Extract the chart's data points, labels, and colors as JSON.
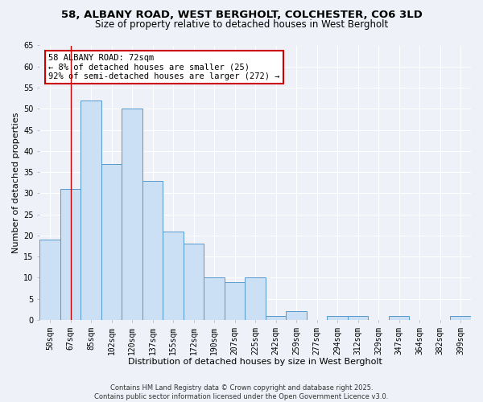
{
  "title_line1": "58, ALBANY ROAD, WEST BERGHOLT, COLCHESTER, CO6 3LD",
  "title_line2": "Size of property relative to detached houses in West Bergholt",
  "xlabel": "Distribution of detached houses by size in West Bergholt",
  "ylabel": "Number of detached properties",
  "categories": [
    "50sqm",
    "67sqm",
    "85sqm",
    "102sqm",
    "120sqm",
    "137sqm",
    "155sqm",
    "172sqm",
    "190sqm",
    "207sqm",
    "225sqm",
    "242sqm",
    "259sqm",
    "277sqm",
    "294sqm",
    "312sqm",
    "329sqm",
    "347sqm",
    "364sqm",
    "382sqm",
    "399sqm"
  ],
  "values": [
    19,
    31,
    52,
    37,
    50,
    33,
    21,
    18,
    10,
    9,
    10,
    1,
    2,
    0,
    1,
    1,
    0,
    1,
    0,
    0,
    1
  ],
  "bar_color": "#cce0f5",
  "bar_edge_color": "#5599cc",
  "annotation_text": "58 ALBANY ROAD: 72sqm\n← 8% of detached houses are smaller (25)\n92% of semi-detached houses are larger (272) →",
  "annotation_box_color": "#ffffff",
  "annotation_box_edge": "#cc0000",
  "vline_x": 1.0,
  "vline_color": "#cc0000",
  "ylim": [
    0,
    65
  ],
  "yticks": [
    0,
    5,
    10,
    15,
    20,
    25,
    30,
    35,
    40,
    45,
    50,
    55,
    60,
    65
  ],
  "footer": "Contains HM Land Registry data © Crown copyright and database right 2025.\nContains public sector information licensed under the Open Government Licence v3.0.",
  "bg_color": "#eef2f8",
  "plot_bg_color": "#eef2f8",
  "grid_color": "#ffffff",
  "title_fontsize": 9.5,
  "subtitle_fontsize": 8.5,
  "axis_label_fontsize": 8,
  "tick_fontsize": 7,
  "annotation_fontsize": 7.5,
  "footer_fontsize": 6
}
